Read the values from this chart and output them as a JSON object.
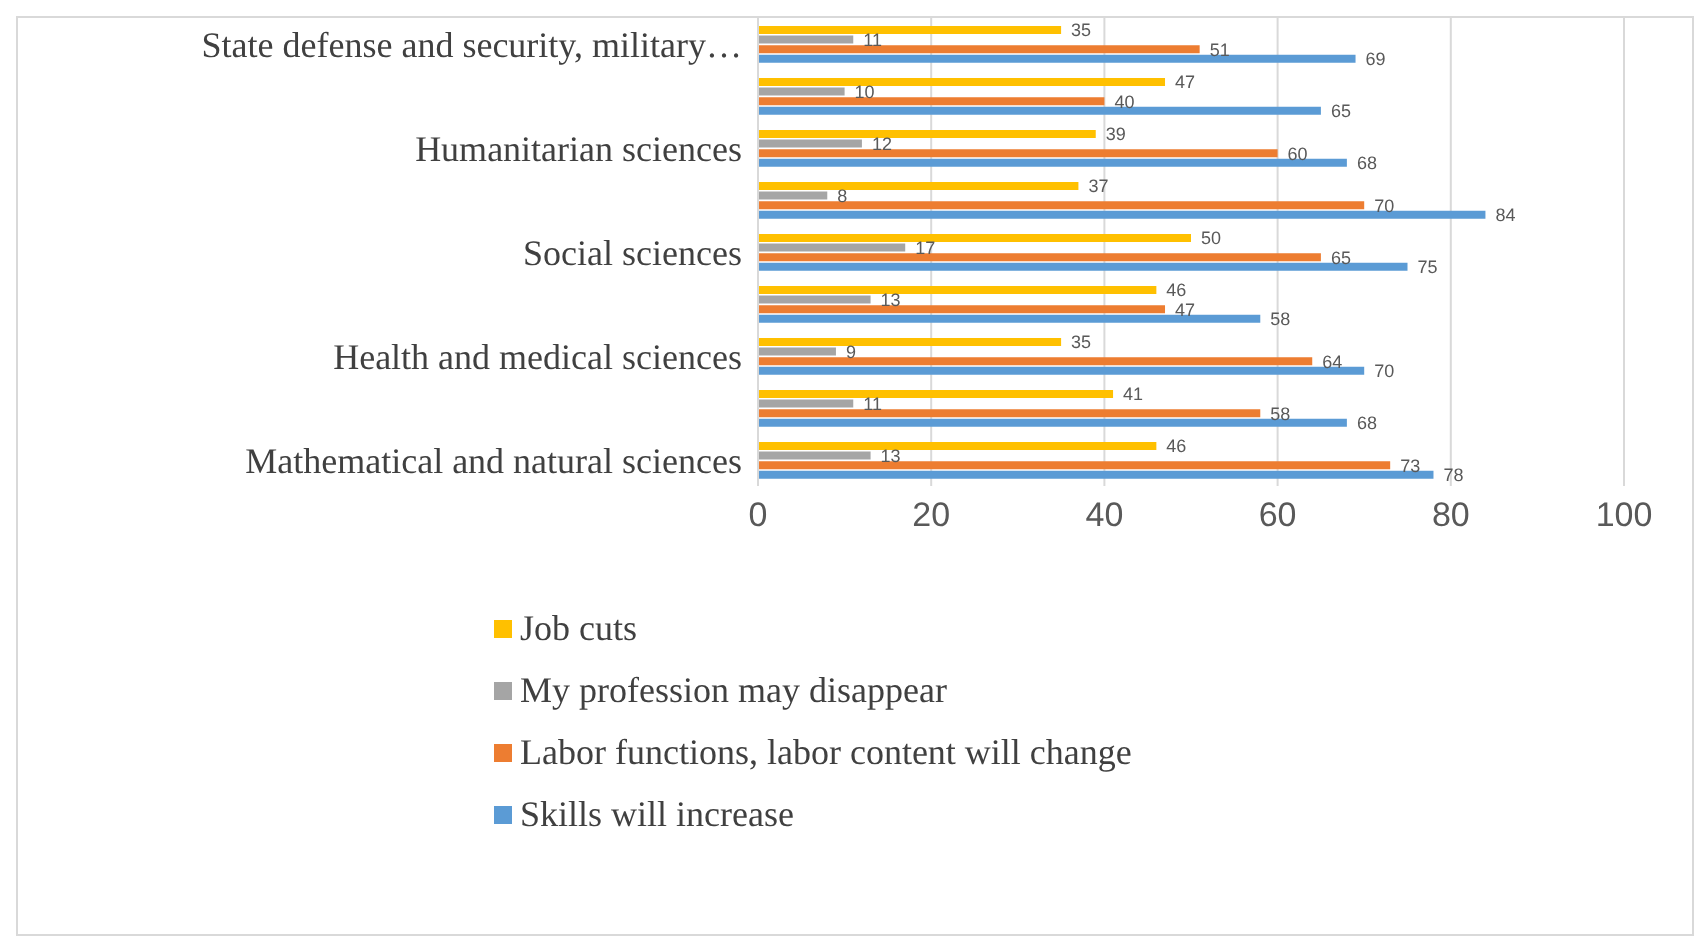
{
  "chart_data": {
    "type": "bar",
    "orientation": "horizontal",
    "categories": [
      "State defense and security, military…",
      null,
      "Humanitarian sciences",
      null,
      "Social sciences",
      null,
      "Health and medical sciences",
      null,
      "Mathematical and natural sciences"
    ],
    "series": [
      {
        "name": "Job cuts",
        "color": "#ffc000",
        "values": [
          35,
          47,
          39,
          37,
          50,
          46,
          35,
          41,
          46
        ]
      },
      {
        "name": "My profession may disappear",
        "color": "#a5a5a5",
        "values": [
          11,
          10,
          12,
          8,
          17,
          13,
          9,
          11,
          13
        ]
      },
      {
        "name": "Labor functions, labor content will change",
        "color": "#ed7d31",
        "values": [
          51,
          40,
          60,
          70,
          65,
          47,
          64,
          58,
          73
        ]
      },
      {
        "name": "Skills will increase",
        "color": "#5b9bd5",
        "values": [
          69,
          65,
          68,
          84,
          75,
          58,
          70,
          68,
          78
        ]
      }
    ],
    "xlim": [
      0,
      100
    ],
    "xticks": [
      0,
      20,
      40,
      60,
      80,
      100
    ],
    "grid": "x",
    "legend": "bottom",
    "data_labels": true
  }
}
